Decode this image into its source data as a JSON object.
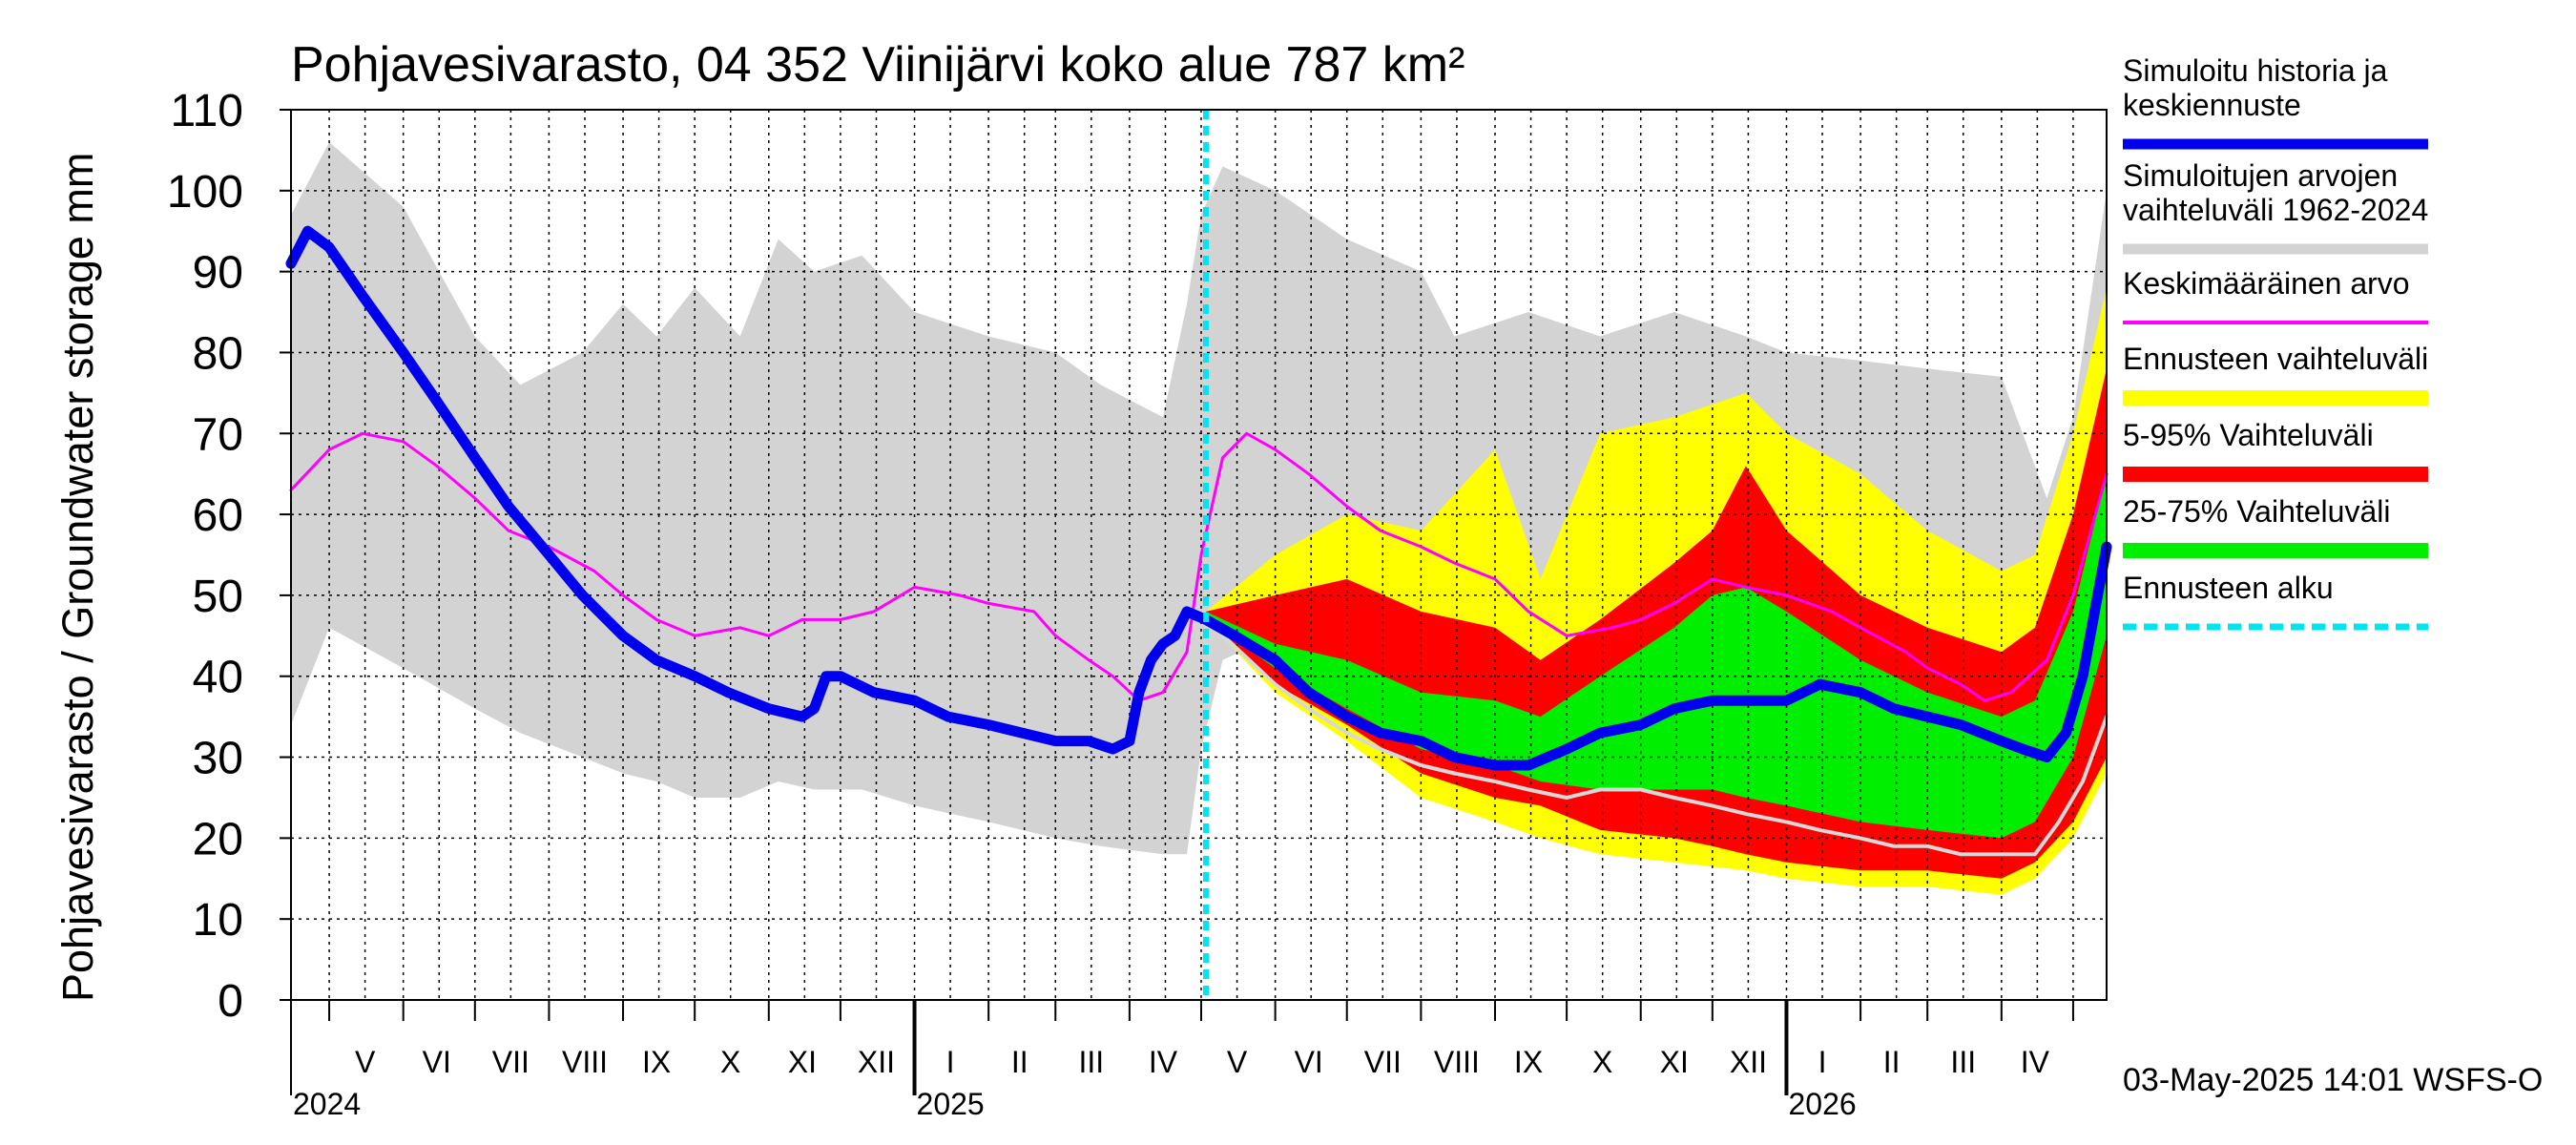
{
  "chart_data": {
    "type": "area",
    "title": "Pohjavesivarasto, 04 352 Viinijärvi koko alue 787 km²",
    "ylabel": "Pohjavesivarasto / Groundwater storage   mm",
    "ylim": [
      0,
      110
    ],
    "yticks": [
      0,
      10,
      20,
      30,
      40,
      50,
      60,
      70,
      80,
      90,
      100,
      110
    ],
    "grid": true,
    "legend_position": "right",
    "x_start": "2024-04-15",
    "x_end": "2026-05-15",
    "forecast_start": "2025-05-03",
    "month_labels": [
      {
        "date": "2024-05-16",
        "label": "V"
      },
      {
        "date": "2024-06-15",
        "label": "VI"
      },
      {
        "date": "2024-07-16",
        "label": "VII"
      },
      {
        "date": "2024-08-16",
        "label": "VIII"
      },
      {
        "date": "2024-09-15",
        "label": "IX"
      },
      {
        "date": "2024-10-16",
        "label": "X"
      },
      {
        "date": "2024-11-15",
        "label": "XI"
      },
      {
        "date": "2024-12-16",
        "label": "XII"
      },
      {
        "date": "2025-01-16",
        "label": "I"
      },
      {
        "date": "2025-02-14",
        "label": "II"
      },
      {
        "date": "2025-03-16",
        "label": "III"
      },
      {
        "date": "2025-04-15",
        "label": "IV"
      },
      {
        "date": "2025-05-16",
        "label": "V"
      },
      {
        "date": "2025-06-15",
        "label": "VI"
      },
      {
        "date": "2025-07-16",
        "label": "VII"
      },
      {
        "date": "2025-08-16",
        "label": "VIII"
      },
      {
        "date": "2025-09-15",
        "label": "IX"
      },
      {
        "date": "2025-10-16",
        "label": "X"
      },
      {
        "date": "2025-11-15",
        "label": "XI"
      },
      {
        "date": "2025-12-16",
        "label": "XII"
      },
      {
        "date": "2026-01-16",
        "label": "I"
      },
      {
        "date": "2026-02-14",
        "label": "II"
      },
      {
        "date": "2026-03-16",
        "label": "III"
      },
      {
        "date": "2026-04-15",
        "label": "IV"
      }
    ],
    "month_boundaries": [
      "2024-05-01",
      "2024-06-01",
      "2024-07-01",
      "2024-08-01",
      "2024-09-01",
      "2024-10-01",
      "2024-11-01",
      "2024-12-01",
      "2025-01-01",
      "2025-02-01",
      "2025-03-01",
      "2025-04-01",
      "2025-05-01",
      "2025-06-01",
      "2025-07-01",
      "2025-08-01",
      "2025-09-01",
      "2025-10-01",
      "2025-11-01",
      "2025-12-01",
      "2026-01-01",
      "2026-02-01",
      "2026-03-01",
      "2026-04-01",
      "2026-05-01"
    ],
    "year_labels": [
      {
        "date": "2024-04-15",
        "label": "2024"
      },
      {
        "date": "2025-01-01",
        "label": "2025"
      },
      {
        "date": "2026-01-01",
        "label": "2026"
      }
    ],
    "series": [
      {
        "name": "Simuloitujen arvojen vaihteluväli 1962-2024",
        "kind": "band",
        "color": "#d3d3d3",
        "x": [
          "2024-04-15",
          "2024-05-01",
          "2024-06-01",
          "2024-07-01",
          "2024-07-20",
          "2024-08-15",
          "2024-09-01",
          "2024-09-15",
          "2024-10-01",
          "2024-10-20",
          "2024-11-05",
          "2024-11-20",
          "2024-12-10",
          "2025-01-01",
          "2025-02-01",
          "2025-03-01",
          "2025-03-20",
          "2025-04-15",
          "2025-04-25",
          "2025-05-01",
          "2025-05-10",
          "2025-06-01",
          "2025-07-01",
          "2025-08-01",
          "2025-08-15",
          "2025-09-15",
          "2025-10-15",
          "2025-11-15",
          "2025-12-15",
          "2026-01-01",
          "2026-02-01",
          "2026-03-01",
          "2026-04-01",
          "2026-04-20",
          "2026-05-01",
          "2026-05-15"
        ],
        "low": [
          34,
          46,
          41,
          36,
          33,
          30,
          28,
          27,
          25,
          25,
          27,
          26,
          26,
          24,
          22,
          20,
          19,
          18,
          18,
          31,
          42,
          45,
          44,
          42,
          40,
          38,
          37,
          36,
          35,
          35,
          33,
          32,
          30,
          35,
          55,
          70
        ],
        "high": [
          97,
          106,
          98,
          82,
          76,
          80,
          86,
          82,
          88,
          82,
          94,
          90,
          92,
          85,
          82,
          80,
          76,
          72,
          86,
          97,
          103,
          100,
          94,
          90,
          82,
          85,
          82,
          85,
          82,
          80,
          79,
          78,
          77,
          62,
          72,
          100
        ]
      },
      {
        "name": "Ennusteen vaihteluväli",
        "kind": "band",
        "color": "#ffff00",
        "x": [
          "2025-05-03",
          "2025-06-01",
          "2025-07-01",
          "2025-08-01",
          "2025-09-01",
          "2025-09-20",
          "2025-10-15",
          "2025-11-15",
          "2025-12-15",
          "2026-01-01",
          "2026-02-01",
          "2026-03-01",
          "2026-04-01",
          "2026-04-15",
          "2026-05-01",
          "2026-05-15"
        ],
        "low": [
          47,
          38,
          32,
          25,
          22,
          20,
          18,
          17,
          16,
          15,
          14,
          14,
          13,
          15,
          20,
          28
        ],
        "high": [
          48,
          55,
          60,
          58,
          68,
          52,
          70,
          72,
          75,
          70,
          65,
          58,
          53,
          55,
          70,
          88
        ]
      },
      {
        "name": "5-95% Vaihteluväli",
        "kind": "band",
        "color": "#ff0000",
        "x": [
          "2025-05-03",
          "2025-06-01",
          "2025-07-01",
          "2025-08-01",
          "2025-09-01",
          "2025-09-20",
          "2025-10-15",
          "2025-11-15",
          "2025-12-01",
          "2025-12-15",
          "2026-01-01",
          "2026-02-01",
          "2026-03-01",
          "2026-04-01",
          "2026-04-15",
          "2026-05-01",
          "2026-05-15"
        ],
        "low": [
          47,
          39,
          34,
          28,
          25,
          24,
          21,
          20,
          19,
          18,
          17,
          16,
          16,
          15,
          17,
          22,
          30
        ],
        "high": [
          48,
          50,
          52,
          48,
          46,
          42,
          47,
          54,
          58,
          66,
          58,
          50,
          46,
          43,
          46,
          60,
          78
        ]
      },
      {
        "name": "25-75% Vaihteluväli",
        "kind": "band",
        "color": "#00ee00",
        "x": [
          "2025-05-03",
          "2025-06-01",
          "2025-07-01",
          "2025-08-01",
          "2025-09-01",
          "2025-09-20",
          "2025-10-15",
          "2025-11-15",
          "2025-12-01",
          "2025-12-15",
          "2026-01-01",
          "2026-02-01",
          "2026-03-01",
          "2026-04-01",
          "2026-04-15",
          "2026-05-01",
          "2026-05-15"
        ],
        "low": [
          47,
          41,
          36,
          31,
          29,
          27,
          26,
          26,
          26,
          25,
          24,
          22,
          21,
          20,
          22,
          30,
          45
        ],
        "high": [
          48,
          44,
          42,
          38,
          37,
          35,
          40,
          46,
          50,
          51,
          48,
          42,
          38,
          35,
          37,
          48,
          65
        ]
      },
      {
        "name": "Keskimääräinen arvo",
        "kind": "line",
        "color": "#ff00ff",
        "width": 3,
        "x": [
          "2024-04-15",
          "2024-05-01",
          "2024-05-15",
          "2024-06-01",
          "2024-06-15",
          "2024-07-01",
          "2024-07-15",
          "2024-08-01",
          "2024-08-20",
          "2024-09-01",
          "2024-09-15",
          "2024-10-01",
          "2024-10-20",
          "2024-11-01",
          "2024-11-15",
          "2024-12-01",
          "2024-12-15",
          "2025-01-01",
          "2025-01-20",
          "2025-02-01",
          "2025-02-20",
          "2025-03-01",
          "2025-03-15",
          "2025-03-25",
          "2025-04-05",
          "2025-04-15",
          "2025-04-25",
          "2025-05-01",
          "2025-05-10",
          "2025-05-20",
          "2025-06-01",
          "2025-06-15",
          "2025-07-01",
          "2025-07-15",
          "2025-08-01",
          "2025-08-15",
          "2025-09-01",
          "2025-09-15",
          "2025-10-01",
          "2025-10-20",
          "2025-11-01",
          "2025-11-15",
          "2025-12-01",
          "2025-12-15",
          "2026-01-01",
          "2026-01-20",
          "2026-02-01",
          "2026-02-20",
          "2026-03-01",
          "2026-03-15",
          "2026-03-25",
          "2026-04-05",
          "2026-04-20",
          "2026-05-01",
          "2026-05-15"
        ],
        "y": [
          63,
          68,
          70,
          69,
          66,
          62,
          58,
          56,
          53,
          50,
          47,
          45,
          46,
          45,
          47,
          47,
          48,
          51,
          50,
          49,
          48,
          45,
          42,
          40,
          37,
          38,
          43,
          55,
          67,
          70,
          68,
          65,
          61,
          58,
          56,
          54,
          52,
          48,
          45,
          46,
          47,
          49,
          52,
          51,
          50,
          48,
          46,
          43,
          41,
          39,
          37,
          38,
          42,
          50,
          65
        ]
      },
      {
        "name": "median",
        "kind": "line",
        "color": "#d8d8d8",
        "width": 4,
        "x": [
          "2025-05-03",
          "2025-06-01",
          "2025-06-15",
          "2025-07-01",
          "2025-07-15",
          "2025-08-01",
          "2025-08-15",
          "2025-09-01",
          "2025-09-15",
          "2025-10-01",
          "2025-10-15",
          "2025-11-01",
          "2025-11-15",
          "2025-12-01",
          "2025-12-15",
          "2026-01-01",
          "2026-01-15",
          "2026-02-01",
          "2026-02-15",
          "2026-03-01",
          "2026-03-15",
          "2026-04-01",
          "2026-04-15",
          "2026-04-25",
          "2026-05-05",
          "2026-05-15"
        ],
        "y": [
          47,
          39,
          36,
          33,
          31,
          29,
          28,
          27,
          26,
          25,
          26,
          26,
          25,
          24,
          23,
          22,
          21,
          20,
          19,
          19,
          18,
          18,
          18,
          22,
          27,
          35
        ]
      },
      {
        "name": "Simuloitu historia ja keskiennuste",
        "kind": "line",
        "color": "#0000ee",
        "width": 11,
        "x": [
          "2024-04-15",
          "2024-04-22",
          "2024-05-01",
          "2024-05-15",
          "2024-06-01",
          "2024-06-15",
          "2024-07-01",
          "2024-07-15",
          "2024-08-01",
          "2024-08-15",
          "2024-09-01",
          "2024-09-15",
          "2024-10-01",
          "2024-10-15",
          "2024-11-01",
          "2024-11-15",
          "2024-11-20",
          "2024-11-25",
          "2024-12-01",
          "2024-12-15",
          "2025-01-01",
          "2025-01-15",
          "2025-02-01",
          "2025-02-15",
          "2025-03-01",
          "2025-03-15",
          "2025-03-25",
          "2025-04-01",
          "2025-04-05",
          "2025-04-10",
          "2025-04-15",
          "2025-04-20",
          "2025-04-25",
          "2025-05-03",
          "2025-05-15",
          "2025-06-01",
          "2025-06-15",
          "2025-07-01",
          "2025-07-15",
          "2025-08-01",
          "2025-08-15",
          "2025-09-01",
          "2025-09-15",
          "2025-10-01",
          "2025-10-15",
          "2025-11-01",
          "2025-11-15",
          "2025-12-01",
          "2025-12-15",
          "2026-01-01",
          "2026-01-15",
          "2026-02-01",
          "2026-02-15",
          "2026-03-01",
          "2026-03-15",
          "2026-04-01",
          "2026-04-10",
          "2026-04-20",
          "2026-04-28",
          "2026-05-05",
          "2026-05-15"
        ],
        "y": [
          91,
          95,
          93,
          87,
          80,
          74,
          67,
          61,
          55,
          50,
          45,
          42,
          40,
          38,
          36,
          35,
          36,
          40,
          40,
          38,
          37,
          35,
          34,
          33,
          32,
          32,
          31,
          32,
          38,
          42,
          44,
          45,
          48,
          47,
          45,
          42,
          38,
          35,
          33,
          32,
          30,
          29,
          29,
          31,
          33,
          34,
          36,
          37,
          37,
          37,
          39,
          38,
          36,
          35,
          34,
          32,
          31,
          30,
          33,
          40,
          56
        ]
      },
      {
        "name": "Ennusteen alku",
        "kind": "vline",
        "color": "#00e5ee",
        "width": 6,
        "date": "2025-05-03"
      }
    ]
  },
  "legend": [
    {
      "label": "Simuloitu historia ja keskiennuste",
      "color": "#0000ee"
    },
    {
      "label": "Simuloitujen arvojen vaihteluväli 1962-2024",
      "color": "#d3d3d3"
    },
    {
      "label": "Keskimääräinen arvo",
      "color": "#ff00ff"
    },
    {
      "label": "Ennusteen vaihteluväli",
      "color": "#ffff00"
    },
    {
      "label": "5-95% Vaihteluväli",
      "color": "#ff0000"
    },
    {
      "label": "25-75% Vaihteluväli",
      "color": "#00ee00"
    },
    {
      "label": "Ennusteen alku",
      "color": "#00e5ee"
    }
  ],
  "footer": "03-May-2025 14:01 WSFS-O"
}
